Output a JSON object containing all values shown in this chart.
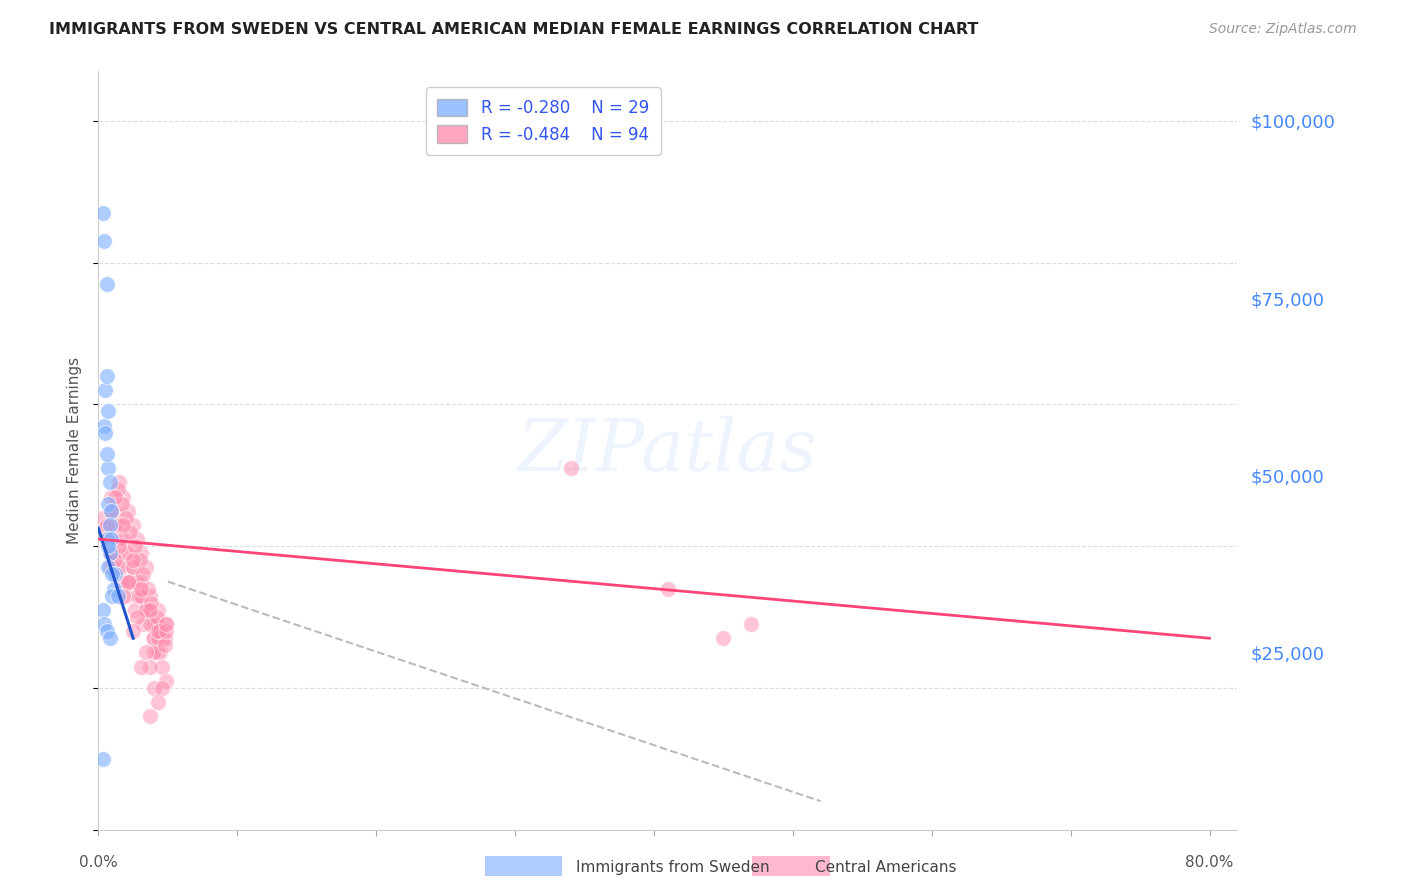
{
  "title": "IMMIGRANTS FROM SWEDEN VS CENTRAL AMERICAN MEDIAN FEMALE EARNINGS CORRELATION CHART",
  "source": "Source: ZipAtlas.com",
  "ylabel": "Median Female Earnings",
  "right_ytick_labels": [
    "$25,000",
    "$50,000",
    "$75,000",
    "$100,000"
  ],
  "right_ytick_values": [
    25000,
    50000,
    75000,
    100000
  ],
  "ylim": [
    0,
    107000
  ],
  "xlim": [
    0.0,
    0.82
  ],
  "legend_blue_r": "R = -0.280",
  "legend_blue_n": "N = 29",
  "legend_pink_r": "R = -0.484",
  "legend_pink_n": "N = 94",
  "blue_color": "#7AADFF",
  "pink_color": "#FF8AAD",
  "trendline_blue_color": "#2255CC",
  "trendline_pink_color": "#FF4477",
  "trendline_dashed_color": "#BBBBBB",
  "title_color": "#222222",
  "right_label_color": "#4488FF",
  "background_color": "#FFFFFF",
  "grid_color": "#DDDDDD",
  "sweden_x": [
    0.003,
    0.004,
    0.005,
    0.006,
    0.004,
    0.006,
    0.007,
    0.005,
    0.007,
    0.006,
    0.008,
    0.007,
    0.009,
    0.008,
    0.006,
    0.009,
    0.008,
    0.007,
    0.012,
    0.011,
    0.01,
    0.014,
    0.003,
    0.004,
    0.006,
    0.008,
    0.003,
    0.01,
    0.007
  ],
  "sweden_y": [
    87000,
    83000,
    62000,
    77000,
    57000,
    64000,
    59000,
    56000,
    51000,
    53000,
    49000,
    46000,
    45000,
    43000,
    41000,
    41000,
    39000,
    37000,
    36000,
    34000,
    33000,
    33000,
    31000,
    29000,
    28000,
    27000,
    10000,
    36000,
    40000
  ],
  "central_x": [
    0.003,
    0.005,
    0.007,
    0.009,
    0.008,
    0.012,
    0.015,
    0.011,
    0.014,
    0.017,
    0.019,
    0.016,
    0.021,
    0.02,
    0.025,
    0.023,
    0.028,
    0.026,
    0.031,
    0.029,
    0.034,
    0.032,
    0.037,
    0.036,
    0.04,
    0.039,
    0.043,
    0.042,
    0.046,
    0.044,
    0.049,
    0.048,
    0.009,
    0.012,
    0.015,
    0.018,
    0.021,
    0.025,
    0.028,
    0.031,
    0.034,
    0.037,
    0.04,
    0.043,
    0.046,
    0.049,
    0.015,
    0.018,
    0.021,
    0.025,
    0.028,
    0.031,
    0.034,
    0.037,
    0.04,
    0.043,
    0.014,
    0.017,
    0.02,
    0.023,
    0.026,
    0.03,
    0.032,
    0.036,
    0.038,
    0.042,
    0.044,
    0.048,
    0.012,
    0.018,
    0.025,
    0.031,
    0.037,
    0.043,
    0.049,
    0.009,
    0.015,
    0.021,
    0.028,
    0.034,
    0.04,
    0.046,
    0.006,
    0.012,
    0.018,
    0.025,
    0.031,
    0.043,
    0.037,
    0.049,
    0.34,
    0.41,
    0.47,
    0.45
  ],
  "central_y": [
    44000,
    42500,
    41000,
    39000,
    37000,
    43000,
    41000,
    39000,
    37000,
    35000,
    39000,
    37000,
    35000,
    33000,
    37000,
    35000,
    33000,
    31000,
    35000,
    33000,
    31000,
    29000,
    33000,
    31000,
    29000,
    27000,
    31000,
    29000,
    27000,
    25000,
    29000,
    27000,
    47000,
    45000,
    43000,
    41000,
    39000,
    37000,
    35000,
    33000,
    31000,
    29000,
    27000,
    25000,
    23000,
    21000,
    49000,
    47000,
    45000,
    43000,
    41000,
    39000,
    37000,
    23000,
    25000,
    27000,
    48000,
    46000,
    44000,
    42000,
    40000,
    38000,
    36000,
    34000,
    32000,
    30000,
    28000,
    26000,
    47000,
    43000,
    38000,
    34000,
    31000,
    28000,
    28000,
    45000,
    40000,
    35000,
    30000,
    25000,
    20000,
    20000,
    43000,
    38000,
    33000,
    28000,
    23000,
    18000,
    16000,
    29000,
    51000,
    34000,
    29000,
    27000
  ],
  "sweden_trendline_x": [
    0.0,
    0.025
  ],
  "sweden_trendline_y": [
    42500,
    27000
  ],
  "central_trendline_x": [
    0.0,
    0.8
  ],
  "central_trendline_y": [
    41000,
    27000
  ],
  "dashed_line_x": [
    0.05,
    0.52
  ],
  "dashed_line_y": [
    35000,
    4000
  ]
}
